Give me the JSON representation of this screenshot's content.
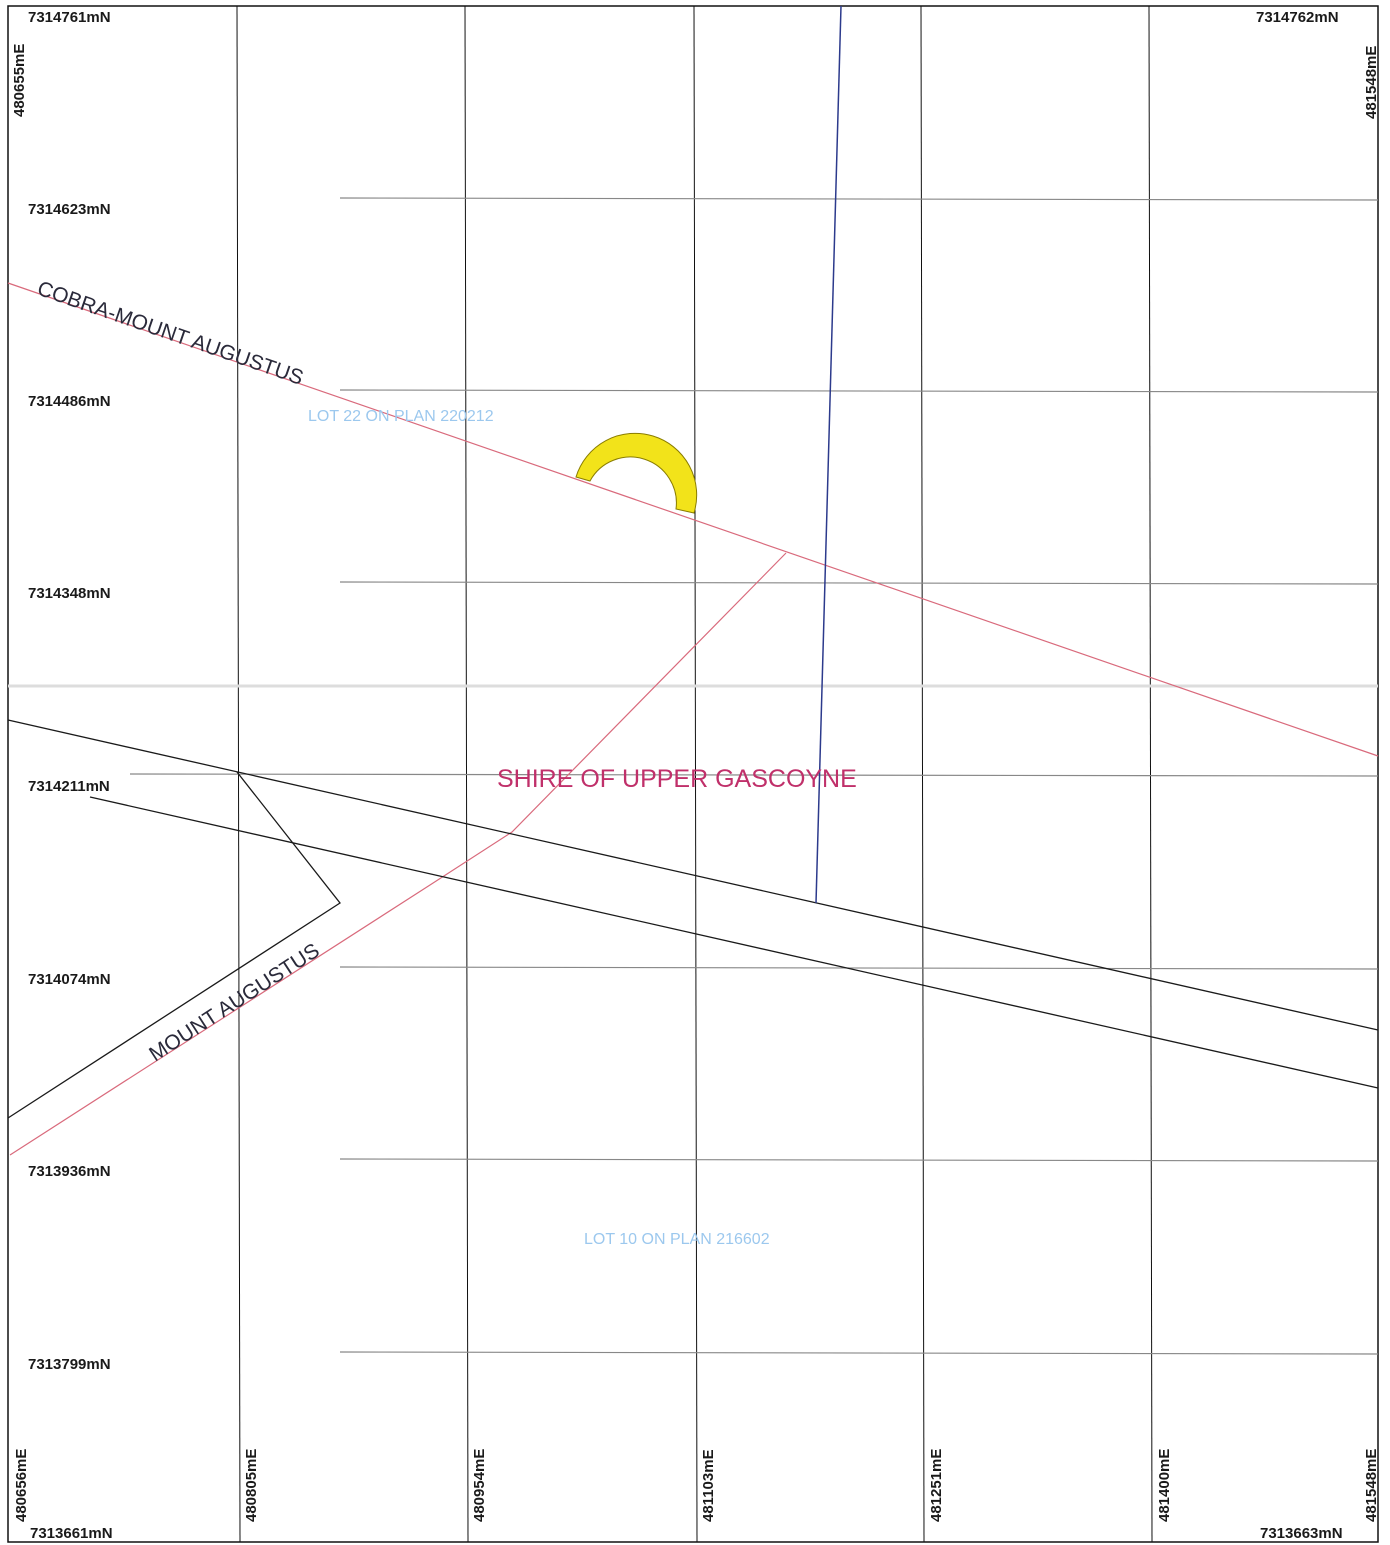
{
  "colors": {
    "grid": "#111111",
    "grid_faint": "#b8b8b8",
    "road_boundary": "#1a1a1a",
    "cadastral": "#d96a7c",
    "blue_line": "#2c3a8c",
    "tenement": "#f2e31a",
    "tenement_outline": "#8a7d00",
    "shire_label": "#c0306a",
    "lot_label": "#9cc8ee"
  },
  "northings": {
    "top_left": "7314761mN",
    "top_right": "7314762mN",
    "row_1": "7314623mN",
    "row_2": "7314486mN",
    "row_3": "7314348mN",
    "row_4": "7314211mN",
    "row_5": "7314074mN",
    "row_6": "7313936mN",
    "row_7": "7313799mN",
    "bottom_left": "7313661mN",
    "bottom_right": "7313663mN"
  },
  "eastings": {
    "top_left": "480655mE",
    "top_right": "481548mE",
    "bottom": [
      "480656mE",
      "480805mE",
      "480954mE",
      "481103mE",
      "481251mE",
      "481400mE",
      "481548mE"
    ]
  },
  "labels": {
    "road_north": "COBRA-MOUNT AUGUSTUS",
    "road_south": "MOUNT AUGUSTUS",
    "lot_north": "LOT 22 ON PLAN 220212",
    "lot_south": "LOT 10 ON PLAN 216602",
    "shire": "SHIRE OF UPPER GASCOYNE"
  }
}
